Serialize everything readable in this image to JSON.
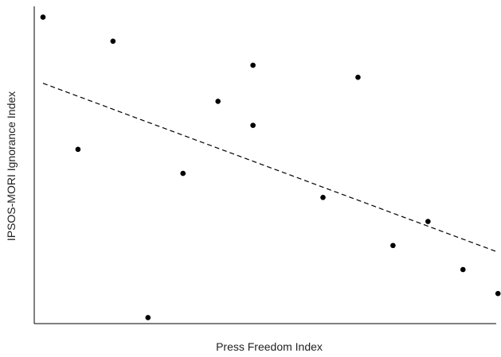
{
  "chart_data": {
    "type": "scatter",
    "title": "",
    "xlabel": "Press Freedom Index",
    "ylabel": "IPSOS-MORI Ignorance Index",
    "xlim": [
      0,
      13.2
    ],
    "ylim": [
      0,
      13.2
    ],
    "grid": false,
    "legend": "none",
    "series": [
      {
        "x": [
          0.25,
          1.25,
          2.25,
          3.25,
          4.25,
          5.25,
          6.25,
          6.25,
          8.25,
          9.25,
          10.25,
          11.25,
          12.25,
          13.25
        ],
        "y": [
          12.75,
          7.25,
          11.75,
          0.25,
          6.25,
          9.25,
          10.75,
          8.25,
          5.25,
          10.25,
          3.25,
          4.25,
          2.25,
          1.25
        ]
      }
    ],
    "trendline": {
      "x": [
        0.25,
        13.2
      ],
      "y": [
        10.0,
        3.0
      ],
      "style": "dashed"
    },
    "colors": {
      "points": "#000000",
      "trendline": "#000000",
      "axes": "#000000"
    }
  }
}
